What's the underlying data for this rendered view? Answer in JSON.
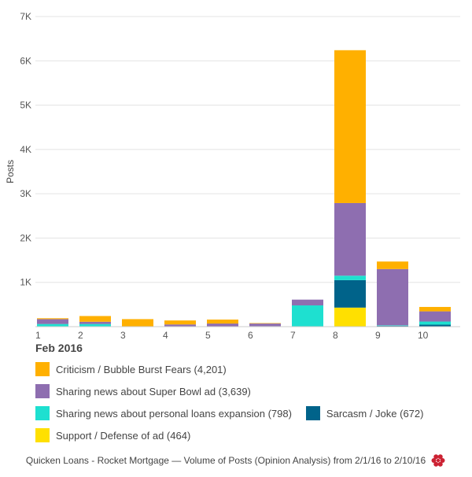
{
  "chart_data": {
    "type": "bar",
    "stacked": true,
    "categories": [
      "1",
      "2",
      "3",
      "4",
      "5",
      "6",
      "7",
      "8",
      "9",
      "10"
    ],
    "xlabel": "Feb 2016",
    "ylabel": "Posts",
    "ylim": [
      0,
      7000
    ],
    "yticks": [
      1000,
      2000,
      3000,
      4000,
      5000,
      6000,
      7000
    ],
    "ytick_labels": [
      "1K",
      "2K",
      "3K",
      "4K",
      "5K",
      "6K",
      "7K"
    ],
    "grid": true,
    "legend_position": "bottom",
    "series": [
      {
        "name": "Support / Defense of ad (464)",
        "color": "#ffe000",
        "values": [
          0,
          0,
          0,
          0,
          0,
          0,
          0,
          430,
          10,
          5
        ]
      },
      {
        "name": "Sarcasm / Joke (672)",
        "color": "#00638a",
        "values": [
          0,
          0,
          0,
          0,
          0,
          0,
          0,
          620,
          10,
          40
        ]
      },
      {
        "name": "Sharing news about personal loans expansion (798)",
        "color": "#1ee0d0",
        "values": [
          60,
          60,
          0,
          0,
          0,
          10,
          480,
          100,
          10,
          70
        ]
      },
      {
        "name": "Sharing news about Super Bowl ad (3,639)",
        "color": "#8e6eb0",
        "values": [
          110,
          50,
          0,
          50,
          70,
          60,
          130,
          1640,
          1270,
          230
        ]
      },
      {
        "name": "Criticism / Bubble Burst Fears (4,201)",
        "color": "#ffb000",
        "values": [
          20,
          130,
          170,
          90,
          90,
          10,
          0,
          3450,
          170,
          100
        ]
      }
    ]
  },
  "caption": "Quicken Loans - Rocket Mortgage — Volume of Posts (Opinion Analysis) from 2/1/16 to 2/10/16",
  "brand_icon": "flower-logo-icon",
  "brand_color": "#cc2233"
}
